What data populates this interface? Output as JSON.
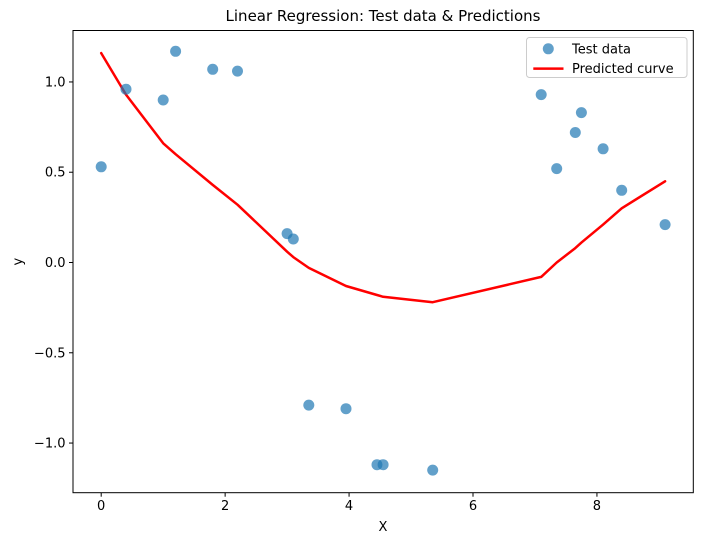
{
  "chart_data": {
    "type": "scatter",
    "title": "Linear Regression: Test data & Predictions",
    "xlabel": "X",
    "ylabel": "y",
    "xlim": [
      -0.455,
      9.555
    ],
    "ylim": [
      -1.275,
      1.285
    ],
    "grid": false,
    "legend_position": "upper right",
    "x_ticks": {
      "values": [
        0,
        2,
        4,
        6,
        8
      ],
      "labels": [
        "0",
        "2",
        "4",
        "6",
        "8"
      ]
    },
    "y_ticks": {
      "values": [
        1.0,
        0.5,
        0.0,
        -0.5,
        -1.0
      ],
      "labels": [
        "1.0",
        "0.5",
        "0.0",
        "−0.5",
        "−1.0"
      ]
    },
    "series": [
      {
        "name": "Test data",
        "plot_type": "scatter",
        "color": "#1f77b4",
        "alpha": 0.7,
        "marker_radius": 5.5,
        "points": [
          [
            0.0,
            0.53
          ],
          [
            0.4,
            0.96
          ],
          [
            1.0,
            0.9
          ],
          [
            1.2,
            1.17
          ],
          [
            1.8,
            1.07
          ],
          [
            2.2,
            1.06
          ],
          [
            3.0,
            0.16
          ],
          [
            3.1,
            0.13
          ],
          [
            3.35,
            -0.79
          ],
          [
            3.95,
            -0.81
          ],
          [
            4.45,
            -1.12
          ],
          [
            4.55,
            -1.12
          ],
          [
            5.35,
            -1.15
          ],
          [
            7.1,
            0.93
          ],
          [
            7.35,
            0.52
          ],
          [
            7.65,
            0.72
          ],
          [
            7.75,
            0.83
          ],
          [
            8.1,
            0.63
          ],
          [
            8.4,
            0.4
          ],
          [
            9.1,
            0.21
          ]
        ]
      },
      {
        "name": "Predicted curve",
        "plot_type": "line",
        "color": "#ff0000",
        "linewidth": 2.5,
        "points": [
          [
            0.0,
            1.16
          ],
          [
            0.4,
            0.93
          ],
          [
            1.0,
            0.66
          ],
          [
            1.2,
            0.6
          ],
          [
            1.8,
            0.43
          ],
          [
            2.2,
            0.32
          ],
          [
            3.0,
            0.06
          ],
          [
            3.1,
            0.03
          ],
          [
            3.35,
            -0.03
          ],
          [
            3.95,
            -0.13
          ],
          [
            4.45,
            -0.18
          ],
          [
            4.55,
            -0.19
          ],
          [
            5.35,
            -0.22
          ],
          [
            7.1,
            -0.08
          ],
          [
            7.35,
            0.0
          ],
          [
            7.65,
            0.08
          ],
          [
            7.75,
            0.11
          ],
          [
            8.1,
            0.21
          ],
          [
            8.4,
            0.3
          ],
          [
            9.1,
            0.45
          ]
        ]
      }
    ]
  }
}
